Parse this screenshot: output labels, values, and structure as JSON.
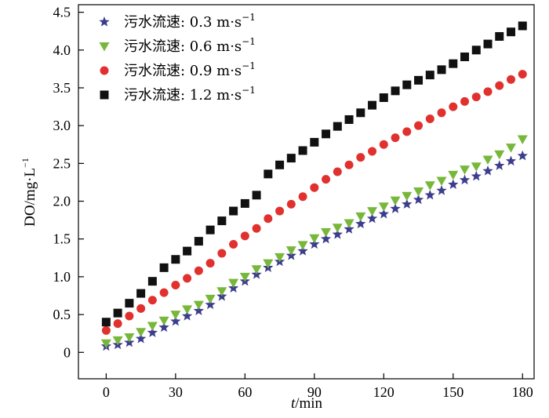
{
  "chart_data": {
    "type": "scatter",
    "title": "",
    "xlabel_italic": "t",
    "xlabel_rest": "/min",
    "ylabel": "DO/mg·L",
    "ylabel_sup": "−1",
    "xlim": [
      -12,
      185
    ],
    "ylim": [
      -0.35,
      4.6
    ],
    "xticks": [
      0,
      30,
      60,
      90,
      120,
      150,
      180
    ],
    "yticks": [
      0,
      0.5,
      1.0,
      1.5,
      2.0,
      2.5,
      3.0,
      3.5,
      4.0,
      4.5
    ],
    "ytick_labels": [
      "0",
      "0.5",
      "1.0",
      "1.5",
      "2.0",
      "2.5",
      "3.0",
      "3.5",
      "4.0",
      "4.5"
    ],
    "x": [
      0,
      5,
      10,
      15,
      20,
      25,
      30,
      35,
      40,
      45,
      50,
      55,
      60,
      65,
      70,
      75,
      80,
      85,
      90,
      95,
      100,
      105,
      110,
      115,
      120,
      125,
      130,
      135,
      140,
      145,
      150,
      155,
      160,
      165,
      170,
      175,
      180
    ],
    "legend_position": "top-left",
    "grid": false,
    "series": [
      {
        "name": "污水流速: 0.3 m·s",
        "name_sup": "−1",
        "marker": "star",
        "color": "#3d3d8f",
        "values": [
          0.08,
          0.1,
          0.13,
          0.18,
          0.26,
          0.33,
          0.41,
          0.48,
          0.55,
          0.63,
          0.74,
          0.85,
          0.94,
          1.03,
          1.12,
          1.2,
          1.28,
          1.34,
          1.43,
          1.5,
          1.56,
          1.63,
          1.7,
          1.77,
          1.83,
          1.9,
          1.96,
          2.02,
          2.08,
          2.14,
          2.22,
          2.28,
          2.33,
          2.4,
          2.47,
          2.53,
          2.6
        ]
      },
      {
        "name": "污水流速: 0.6 m·s",
        "name_sup": "−1",
        "marker": "triangle-down",
        "color": "#77b83a",
        "values": [
          0.12,
          0.16,
          0.2,
          0.27,
          0.35,
          0.42,
          0.5,
          0.57,
          0.63,
          0.71,
          0.81,
          0.92,
          1.0,
          1.1,
          1.18,
          1.26,
          1.35,
          1.42,
          1.51,
          1.59,
          1.65,
          1.71,
          1.8,
          1.87,
          1.93,
          2.01,
          2.07,
          2.13,
          2.21,
          2.27,
          2.35,
          2.42,
          2.46,
          2.55,
          2.62,
          2.71,
          2.82
        ]
      },
      {
        "name": "污水流速: 0.9 m·s",
        "name_sup": "−1",
        "marker": "circle",
        "color": "#e0312f",
        "values": [
          0.29,
          0.38,
          0.48,
          0.58,
          0.69,
          0.79,
          0.89,
          0.98,
          1.08,
          1.18,
          1.31,
          1.43,
          1.54,
          1.64,
          1.77,
          1.87,
          1.96,
          2.06,
          2.18,
          2.29,
          2.39,
          2.48,
          2.58,
          2.66,
          2.75,
          2.84,
          2.92,
          3.0,
          3.09,
          3.17,
          3.25,
          3.32,
          3.38,
          3.45,
          3.53,
          3.61,
          3.68
        ]
      },
      {
        "name": "污水流速: 1.2 m·s",
        "name_sup": "−1",
        "marker": "square",
        "color": "#111111",
        "values": [
          0.4,
          0.52,
          0.65,
          0.78,
          0.94,
          1.12,
          1.23,
          1.34,
          1.47,
          1.62,
          1.74,
          1.87,
          1.97,
          2.08,
          2.36,
          2.48,
          2.57,
          2.67,
          2.78,
          2.89,
          2.99,
          3.08,
          3.17,
          3.27,
          3.37,
          3.46,
          3.54,
          3.6,
          3.67,
          3.74,
          3.82,
          3.91,
          4.0,
          4.08,
          4.18,
          4.24,
          4.32
        ]
      }
    ]
  }
}
